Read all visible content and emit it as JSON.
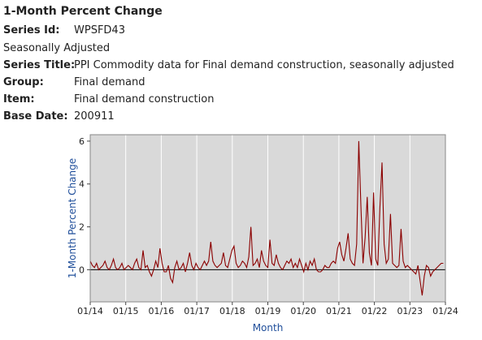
{
  "header": {
    "title": "1-Month Percent Change",
    "series_id_label": "Series Id:",
    "series_id": "WPSFD43",
    "adjustment": "Seasonally Adjusted",
    "series_title_label": "Series Title:",
    "series_title": "PPI Commodity data for Final demand construction, seasonally adjusted",
    "group_label": "Group:",
    "group": "Final demand",
    "item_label": "Item:",
    "item": "Final demand construction",
    "base_date_label": "Base Date:",
    "base_date": "200911"
  },
  "colors": {
    "plot_bg": "#d9d9d9",
    "line": "#8b0000",
    "axis_title": "#1f4e9a",
    "grid": "#ffffff"
  },
  "chart_data": {
    "type": "line",
    "xlabel": "Month",
    "ylabel": "1-Month Percent Change",
    "x_start": "2014-01",
    "x_end": "2024-01",
    "x_ticks": [
      "01/14",
      "01/15",
      "01/16",
      "01/17",
      "01/18",
      "01/19",
      "01/20",
      "01/21",
      "01/22",
      "01/23",
      "01/24"
    ],
    "y_ticks": [
      "0",
      "2",
      "4",
      "6"
    ],
    "ylim": [
      -1.5,
      6.3
    ],
    "grid": "vertical",
    "series": [
      {
        "values": [
          0.4,
          0.2,
          0.1,
          0.3,
          0.0,
          0.1,
          0.2,
          0.4,
          0.1,
          0.0,
          0.2,
          0.5,
          0.1,
          0.0,
          0.1,
          0.3,
          0.0,
          0.1,
          0.2,
          0.1,
          0.0,
          0.3,
          0.5,
          0.1,
          0.0,
          0.9,
          0.1,
          0.2,
          -0.1,
          -0.3,
          0.0,
          0.4,
          0.1,
          1.0,
          0.3,
          -0.1,
          -0.1,
          0.2,
          -0.4,
          -0.6,
          0.1,
          0.4,
          0.0,
          0.1,
          0.3,
          -0.1,
          0.3,
          0.8,
          0.2,
          0.0,
          0.3,
          0.1,
          0.0,
          0.2,
          0.4,
          0.2,
          0.4,
          1.3,
          0.4,
          0.2,
          0.1,
          0.2,
          0.3,
          0.8,
          0.2,
          0.1,
          0.5,
          0.9,
          1.1,
          0.3,
          0.1,
          0.2,
          0.4,
          0.3,
          0.1,
          0.6,
          2.0,
          0.2,
          0.3,
          0.5,
          0.1,
          0.9,
          0.4,
          0.2,
          0.1,
          1.4,
          0.3,
          0.2,
          0.7,
          0.3,
          0.1,
          0.0,
          0.2,
          0.4,
          0.3,
          0.5,
          0.1,
          0.3,
          0.1,
          0.5,
          0.2,
          -0.1,
          0.3,
          0.0,
          0.4,
          0.2,
          0.5,
          0.0,
          -0.1,
          -0.1,
          0.0,
          0.2,
          0.1,
          0.1,
          0.3,
          0.4,
          0.3,
          1.0,
          1.3,
          0.7,
          0.4,
          1.0,
          1.7,
          0.5,
          0.3,
          0.2,
          1.2,
          6.0,
          3.0,
          0.3,
          1.5,
          3.4,
          0.8,
          0.2,
          3.6,
          0.5,
          0.2,
          2.9,
          5.0,
          1.2,
          0.3,
          0.5,
          2.6,
          0.3,
          0.2,
          0.1,
          0.2,
          1.9,
          0.4,
          0.1,
          0.2,
          0.1,
          0.0,
          -0.1,
          -0.2,
          0.2,
          -0.5,
          -1.2,
          -0.3,
          0.2,
          0.1,
          -0.3,
          -0.1,
          0.0,
          0.1,
          0.2,
          0.3,
          0.3
        ]
      }
    ]
  }
}
